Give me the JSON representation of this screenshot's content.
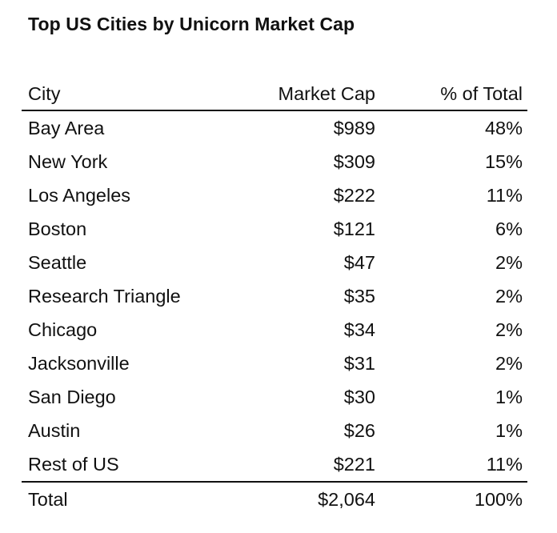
{
  "title": "Top US Cities by Unicorn Market Cap",
  "chart_data": {
    "type": "table",
    "title": "Top US Cities by Unicorn Market Cap",
    "columns": [
      "City",
      "Market Cap",
      "% of Total"
    ],
    "rows": [
      {
        "city": "Bay Area",
        "market_cap": "$989",
        "pct": "48%"
      },
      {
        "city": "New York",
        "market_cap": "$309",
        "pct": "15%"
      },
      {
        "city": "Los Angeles",
        "market_cap": "$222",
        "pct": "11%"
      },
      {
        "city": "Boston",
        "market_cap": "$121",
        "pct": "6%"
      },
      {
        "city": "Seattle",
        "market_cap": "$47",
        "pct": "2%"
      },
      {
        "city": "Research Triangle",
        "market_cap": "$35",
        "pct": "2%"
      },
      {
        "city": "Chicago",
        "market_cap": "$34",
        "pct": "2%"
      },
      {
        "city": "Jacksonville",
        "market_cap": "$31",
        "pct": "2%"
      },
      {
        "city": "San Diego",
        "market_cap": "$30",
        "pct": "1%"
      },
      {
        "city": "Austin",
        "market_cap": "$26",
        "pct": "1%"
      },
      {
        "city": "Rest of US",
        "market_cap": "$221",
        "pct": "11%"
      }
    ],
    "total": {
      "label": "Total",
      "market_cap": "$2,064",
      "pct": "100%"
    }
  }
}
